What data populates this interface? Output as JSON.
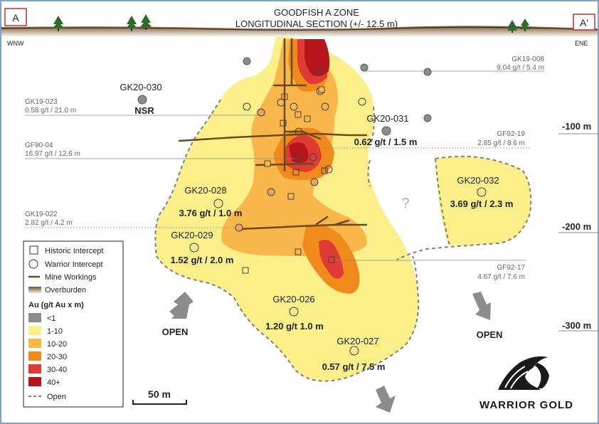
{
  "section": {
    "label_left": "A",
    "label_right": "A'",
    "title_line1": "GOODFISH A ZONE",
    "title_line2": "LONGITUDINAL SECTION (+/- 12.5 m)",
    "dir_left": "WNW",
    "dir_right": "ENE"
  },
  "depth_labels": [
    "-100 m",
    "-200 m",
    "-300 m"
  ],
  "holes": [
    {
      "id": "GK20-030",
      "value": "NSR"
    },
    {
      "id": "GK20-031",
      "value": "0.62 g/t / 1.5 m"
    },
    {
      "id": "GK20-028",
      "value": "3.76 g/t / 1.0 m"
    },
    {
      "id": "GK20-029",
      "value": "1.52 g/t / 2.0 m"
    },
    {
      "id": "GK20-032",
      "value": "3.69 g/t / 2.3 m"
    },
    {
      "id": "GK20-026",
      "value": "1.20 g/t 1.0 m"
    },
    {
      "id": "GK20-027",
      "value": "0.57 g/t / 7.5 m"
    }
  ],
  "historic_labels": [
    {
      "id": "GK19-008",
      "value": "9.04 g/t / 5.4 m"
    },
    {
      "id": "GK19-023",
      "value": "0.58 g/t / 21.0 m"
    },
    {
      "id": "GF92-19",
      "value": "2.85 g/t / 8.6 m"
    },
    {
      "id": "GF90-04",
      "value": "16.97 g/t / 12.6 m"
    },
    {
      "id": "GK19-022",
      "value": "2.82 g/t / 4.2 m"
    },
    {
      "id": "GF92-17",
      "value": "4.67 g/t / 7.6 m"
    }
  ],
  "open_labels": [
    "OPEN",
    "OPEN"
  ],
  "question_mark": "?",
  "legend": {
    "historic": "Historic Intercept",
    "warrior": "Warrior Intercept",
    "workings": "Mine Workings",
    "overburden": "Overburden",
    "au_title": "Au (g/t Au x m)",
    "classes": [
      {
        "label": "<1",
        "color": "#8c8c8c"
      },
      {
        "label": "1-10",
        "color": "#fbef8a"
      },
      {
        "label": "10-20",
        "color": "#f9b64a"
      },
      {
        "label": "20-30",
        "color": "#f08a1b"
      },
      {
        "label": "30-40",
        "color": "#e03a34"
      },
      {
        "label": "40+",
        "color": "#b5151b"
      }
    ],
    "open": "Open"
  },
  "scale_bar": "50 m",
  "logo_text": "WARRIOR GOLD"
}
